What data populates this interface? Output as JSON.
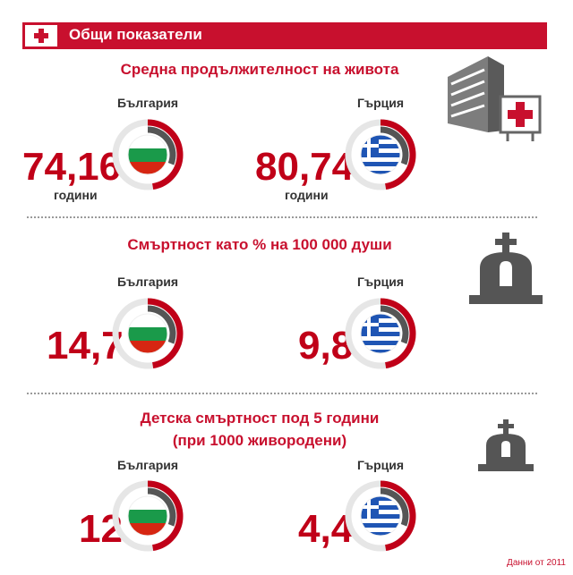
{
  "header": {
    "title": "Общи показатели"
  },
  "sections": [
    {
      "title": "Средна продължителност на живота",
      "items": [
        {
          "country": "България",
          "value": "74,16",
          "unit": "години"
        },
        {
          "country": "Гърция",
          "value": "80,74",
          "unit": "години"
        }
      ]
    },
    {
      "title": "Смъртност като % на 100 000 души",
      "items": [
        {
          "country": "България",
          "value": "14,7"
        },
        {
          "country": "Гърция",
          "value": "9,8"
        }
      ]
    },
    {
      "title_line1": "Детска смъртност под 5 години",
      "title_line2": "(при 1000 живородени)",
      "items": [
        {
          "country": "България",
          "value": "12"
        },
        {
          "country": "Гърция",
          "value": "4,4"
        }
      ]
    }
  ],
  "chart_data": [
    {
      "type": "table",
      "columns": [
        "България",
        "Гърция"
      ],
      "values": [
        74.16,
        80.74
      ],
      "unit": "години"
    },
    {
      "type": "table",
      "columns": [
        "България",
        "Гърция"
      ],
      "values": [
        14.7,
        9.8
      ]
    },
    {
      "type": "table",
      "columns": [
        "България",
        "Гърция"
      ],
      "values": [
        12,
        4.4
      ]
    }
  ],
  "footnote": "Данни от 2011",
  "colors": {
    "accent": "#c8102e",
    "value": "#c00018",
    "gauge_dark": "#555555",
    "gauge_light": "#e6e6e6"
  },
  "icons": [
    "red-cross-icon",
    "hospital-icon",
    "tombstone-icon",
    "bulgaria-flag-icon",
    "greece-flag-icon"
  ]
}
